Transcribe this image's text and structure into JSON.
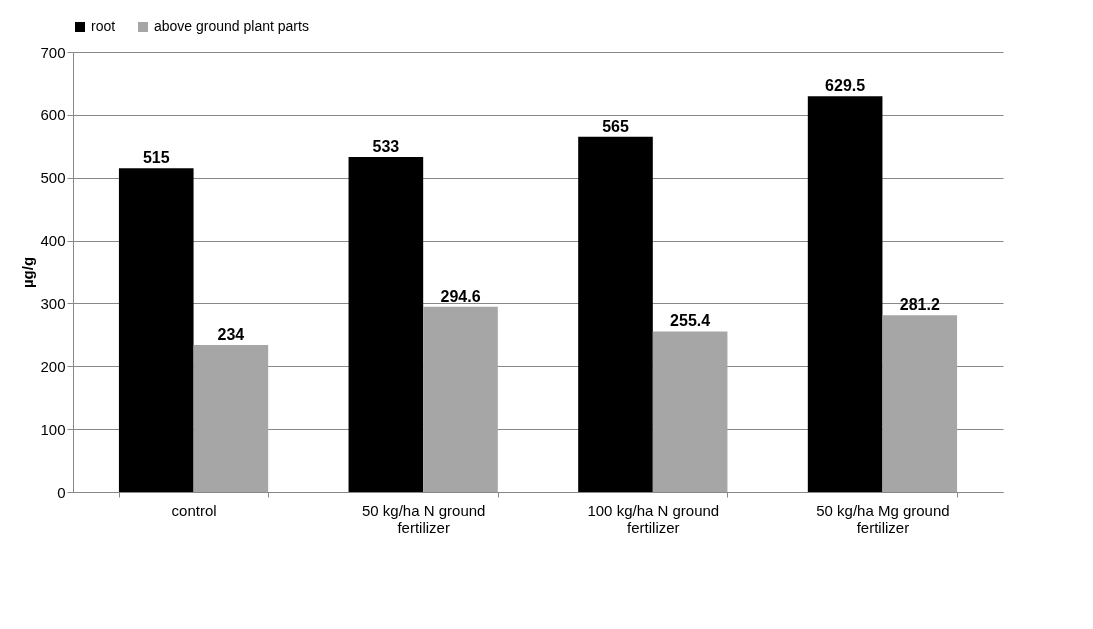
{
  "chart_data": {
    "type": "bar",
    "ylabel": "µg/g",
    "categories": [
      "control",
      "50 kg/ha N ground fertilizer",
      "100 kg/ha N ground fertilizer",
      "50 kg/ha Mg ground fertilizer"
    ],
    "series": [
      {
        "name": "root",
        "color": "#000000",
        "values": [
          515,
          533,
          565,
          629.5
        ]
      },
      {
        "name": "above ground plant parts",
        "color": "#a6a6a6",
        "values": [
          234,
          294.6,
          255.4,
          281.2
        ]
      }
    ],
    "ylim": [
      0,
      700
    ],
    "yticks": [
      0,
      100,
      200,
      300,
      400,
      500,
      600,
      700
    ],
    "grid": "y",
    "legend": "top",
    "data_labels": true
  }
}
